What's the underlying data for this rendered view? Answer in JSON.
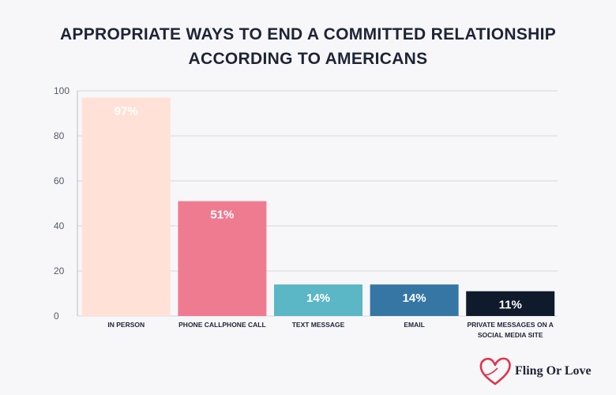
{
  "title_line1": "APPROPRIATE WAYS TO END A COMMITTED RELATIONSHIP",
  "title_line2": "ACCORDING TO AMERICANS",
  "brand": {
    "name": "Fling Or Love",
    "icon": "heart-logo-icon",
    "color": "#e0344a"
  },
  "chart_data": {
    "type": "bar",
    "title": "APPROPRIATE WAYS TO END A COMMITTED RELATIONSHIP ACCORDING TO AMERICANS",
    "xlabel": "",
    "ylabel": "",
    "ylim": [
      0,
      100
    ],
    "yticks": [
      0,
      20,
      40,
      60,
      80,
      100
    ],
    "grid": true,
    "categories": [
      [
        "IN PERSON"
      ],
      [
        "PHONE CALLPHONE CALL"
      ],
      [
        "TEXT MESSAGE"
      ],
      [
        "EMAIL"
      ],
      [
        "PRIVATE MESSAGES ON A",
        "SOCIAL MEDIA SITE"
      ]
    ],
    "values": [
      97,
      51,
      14,
      14,
      11
    ],
    "data_labels": [
      "97%",
      "51%",
      "14%",
      "14%",
      "11%"
    ],
    "colors": [
      "#ffe1d8",
      "#ef7b90",
      "#5bb6c5",
      "#3676a5",
      "#0f1a2c"
    ],
    "label_colors": [
      "#ffffff",
      "#ffffff",
      "#ffffff",
      "#ffffff",
      "#ffffff"
    ]
  }
}
